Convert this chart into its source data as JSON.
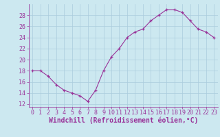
{
  "x": [
    0,
    1,
    2,
    3,
    4,
    5,
    6,
    7,
    8,
    9,
    10,
    11,
    12,
    13,
    14,
    15,
    16,
    17,
    18,
    19,
    20,
    21,
    22,
    23
  ],
  "y": [
    18,
    18,
    17,
    15.5,
    14.5,
    14,
    13.5,
    12.5,
    14.5,
    18,
    20.5,
    22,
    24,
    25,
    25.5,
    27,
    28,
    29,
    29,
    28.5,
    27,
    25.5,
    25,
    24
  ],
  "line_color": "#993399",
  "marker": "+",
  "marker_color": "#993399",
  "bg_color": "#cce8f0",
  "grid_color": "#aaccdd",
  "xlabel": "Windchill (Refroidissement éolien,°C)",
  "ylabel": "",
  "xlim": [
    -0.5,
    23.5
  ],
  "ylim": [
    11.5,
    30.0
  ],
  "yticks": [
    12,
    14,
    16,
    18,
    20,
    22,
    24,
    26,
    28
  ],
  "xticks": [
    0,
    1,
    2,
    3,
    4,
    5,
    6,
    7,
    8,
    9,
    10,
    11,
    12,
    13,
    14,
    15,
    16,
    17,
    18,
    19,
    20,
    21,
    22,
    23
  ],
  "tick_color": "#993399",
  "label_color": "#993399",
  "tick_fontsize": 6.0,
  "xlabel_fontsize": 7.0,
  "linewidth": 0.8,
  "markersize": 3.5
}
